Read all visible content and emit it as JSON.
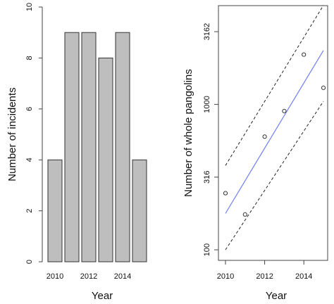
{
  "chart_data": [
    {
      "type": "bar",
      "categories": [
        "2010",
        "2011",
        "2012",
        "2013",
        "2014",
        "2015"
      ],
      "values": [
        4,
        9,
        9,
        8,
        9,
        4
      ],
      "xlabel": "Year",
      "ylabel": "Number of incidents",
      "x_tick_labels": [
        "2010",
        "2012",
        "2014"
      ],
      "y_ticks": [
        "0",
        "2",
        "4",
        "6",
        "8",
        "10"
      ],
      "ylim": [
        0,
        10
      ],
      "bar_color": "#bebebe",
      "grid": false,
      "legend": "none"
    },
    {
      "type": "scatter",
      "scale": "log-y",
      "x": [
        2010,
        2011,
        2012,
        2013,
        2014,
        2015
      ],
      "y": [
        245,
        175,
        600,
        900,
        2200,
        1300
      ],
      "xlabel": "Year",
      "ylabel": "Number of whole pangolins",
      "x_ticks": [
        "2010",
        "2012",
        "2014"
      ],
      "y_ticks": [
        "100",
        "316",
        "1000",
        "3162"
      ],
      "xlim": [
        2010,
        2015
      ],
      "ylim": [
        100,
        5000
      ],
      "fit_line": {
        "x": [
          2010,
          2015
        ],
        "y": [
          178,
          2350
        ],
        "color": "#6f7ff2"
      },
      "ci_lower": {
        "x": [
          2010,
          2015
        ],
        "y": [
          100,
          1050
        ]
      },
      "ci_upper": {
        "x": [
          2010,
          2015
        ],
        "y": [
          380,
          4800
        ]
      },
      "ci_color": "#222222",
      "grid": false,
      "legend": "none"
    }
  ]
}
